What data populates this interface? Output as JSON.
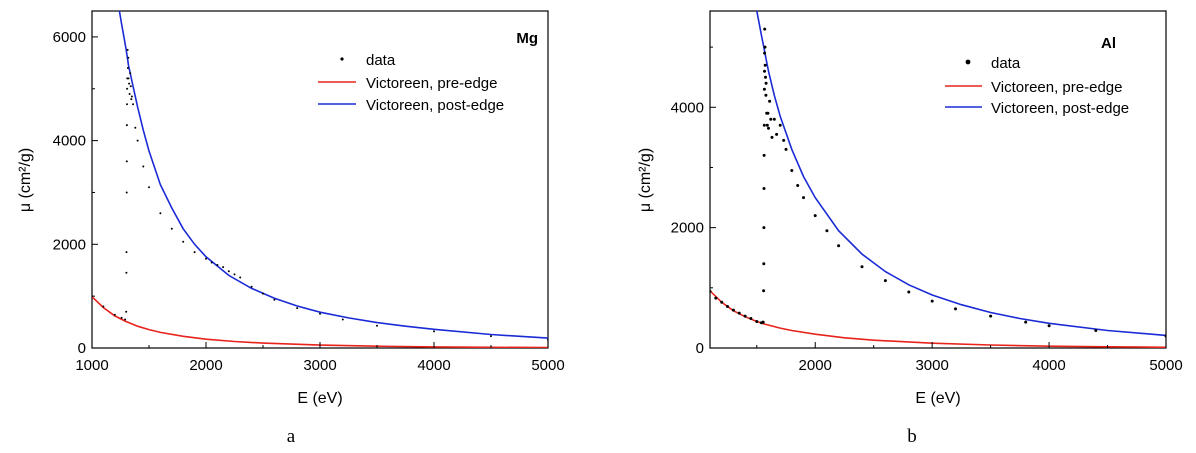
{
  "chart_data": [
    {
      "panel_label": "a",
      "type": "scatter",
      "title": "Mg",
      "xlabel": "E (eV)",
      "ylabel": "μ (cm²/g)",
      "xlim": [
        1000,
        5000
      ],
      "ylim": [
        0,
        6500
      ],
      "xticks": [
        1000,
        2000,
        3000,
        4000,
        5000
      ],
      "yticks": [
        0,
        2000,
        4000,
        6000
      ],
      "grid": false,
      "legend_position": "top-right",
      "legend": [
        "data",
        "Victoreen, pre-edge",
        "Victoreen, post-edge"
      ],
      "edge_energy": 1303,
      "series": [
        {
          "name": "data",
          "kind": "points",
          "color": "#000000",
          "x": [
            1000,
            1100,
            1200,
            1260,
            1290,
            1300,
            1302,
            1303,
            1304,
            1305,
            1306,
            1307,
            1308,
            1310,
            1312,
            1315,
            1318,
            1320,
            1325,
            1330,
            1335,
            1340,
            1345,
            1350,
            1360,
            1380,
            1400,
            1450,
            1500,
            1600,
            1700,
            1800,
            1900,
            2000,
            2050,
            2100,
            2150,
            2200,
            2250,
            2300,
            2400,
            2500,
            2600,
            2800,
            3000,
            3200,
            3500,
            4000,
            4500,
            5000
          ],
          "y": [
            1000,
            800,
            640,
            580,
            550,
            700,
            1450,
            1850,
            3000,
            3600,
            4300,
            4700,
            5000,
            5200,
            5750,
            5400,
            5600,
            5200,
            5100,
            4900,
            5300,
            5050,
            4800,
            4850,
            4700,
            4250,
            4000,
            3500,
            3100,
            2600,
            2300,
            2050,
            1850,
            1720,
            1650,
            1600,
            1560,
            1480,
            1420,
            1360,
            1180,
            1050,
            930,
            770,
            660,
            550,
            430,
            320,
            230,
            160
          ]
        },
        {
          "name": "Victoreen, pre-edge",
          "kind": "line",
          "color": "#e8231c",
          "x": [
            1000,
            1100,
            1200,
            1300,
            1400,
            1500,
            1600,
            1800,
            2000,
            2250,
            2500,
            3000,
            3500,
            4000,
            4500,
            5000
          ],
          "y": [
            990,
            780,
            620,
            510,
            420,
            355,
            300,
            225,
            170,
            125,
            95,
            55,
            35,
            22,
            14,
            10
          ]
        },
        {
          "name": "Victoreen, post-edge",
          "kind": "line",
          "color": "#1a2bd6",
          "x": [
            1240,
            1260,
            1280,
            1300,
            1320,
            1350,
            1400,
            1450,
            1500,
            1600,
            1700,
            1800,
            1900,
            2000,
            2200,
            2400,
            2600,
            2800,
            3000,
            3250,
            3500,
            3750,
            4000,
            4500,
            5000
          ],
          "y": [
            6500,
            6250,
            6000,
            5750,
            5450,
            5150,
            4650,
            4200,
            3800,
            3150,
            2700,
            2300,
            2000,
            1760,
            1400,
            1150,
            960,
            810,
            690,
            580,
            490,
            420,
            360,
            260,
            190
          ]
        }
      ]
    },
    {
      "panel_label": "b",
      "type": "scatter",
      "title": "Al",
      "xlabel": "E (eV)",
      "ylabel": "μ (cm²/g)",
      "xlim": [
        1100,
        5000
      ],
      "ylim": [
        0,
        5600
      ],
      "xticks": [
        2000,
        3000,
        4000,
        5000
      ],
      "yticks": [
        0,
        2000,
        4000
      ],
      "grid": false,
      "legend_position": "top-right",
      "legend": [
        "data",
        "Victoreen, pre-edge",
        "Victoreen, post-edge"
      ],
      "edge_energy": 1560,
      "series": [
        {
          "name": "data",
          "kind": "points",
          "color": "#000000",
          "x": [
            1100,
            1150,
            1200,
            1250,
            1300,
            1350,
            1400,
            1450,
            1500,
            1540,
            1555,
            1558,
            1560,
            1561,
            1562,
            1563,
            1564,
            1565,
            1566,
            1567,
            1568,
            1570,
            1572,
            1575,
            1578,
            1580,
            1585,
            1590,
            1595,
            1600,
            1610,
            1620,
            1630,
            1650,
            1670,
            1700,
            1730,
            1750,
            1800,
            1850,
            1900,
            2000,
            2100,
            2200,
            2400,
            2600,
            2800,
            3000,
            3200,
            3500,
            3800,
            4000,
            4400,
            5000
          ],
          "y": [
            940,
            830,
            760,
            690,
            630,
            580,
            530,
            490,
            440,
            420,
            430,
            950,
            1400,
            2000,
            2650,
            3200,
            3700,
            4300,
            4600,
            4900,
            5300,
            5000,
            4700,
            4500,
            4200,
            4400,
            3900,
            3700,
            3900,
            3650,
            4100,
            3800,
            3500,
            3800,
            3550,
            3700,
            3450,
            3300,
            2950,
            2700,
            2500,
            2200,
            1950,
            1700,
            1350,
            1120,
            930,
            780,
            650,
            530,
            430,
            370,
            290,
            200
          ]
        },
        {
          "name": "Victoreen, pre-edge",
          "kind": "line",
          "color": "#e8231c",
          "x": [
            1100,
            1200,
            1300,
            1400,
            1500,
            1560,
            1700,
            1800,
            2000,
            2250,
            2500,
            3000,
            3500,
            4000,
            4500,
            5000
          ],
          "y": [
            950,
            760,
            620,
            520,
            440,
            400,
            330,
            290,
            230,
            170,
            130,
            80,
            50,
            30,
            20,
            12
          ]
        },
        {
          "name": "Victoreen, post-edge",
          "kind": "line",
          "color": "#1a2bd6",
          "x": [
            1500,
            1520,
            1540,
            1560,
            1580,
            1600,
            1650,
            1700,
            1800,
            1900,
            2000,
            2200,
            2400,
            2600,
            2800,
            3000,
            3250,
            3500,
            3750,
            4000,
            4500,
            5000
          ],
          "y": [
            5600,
            5400,
            5200,
            5000,
            4800,
            4600,
            4200,
            3850,
            3300,
            2850,
            2500,
            1950,
            1560,
            1270,
            1050,
            880,
            720,
            590,
            490,
            410,
            290,
            210
          ]
        }
      ]
    }
  ]
}
